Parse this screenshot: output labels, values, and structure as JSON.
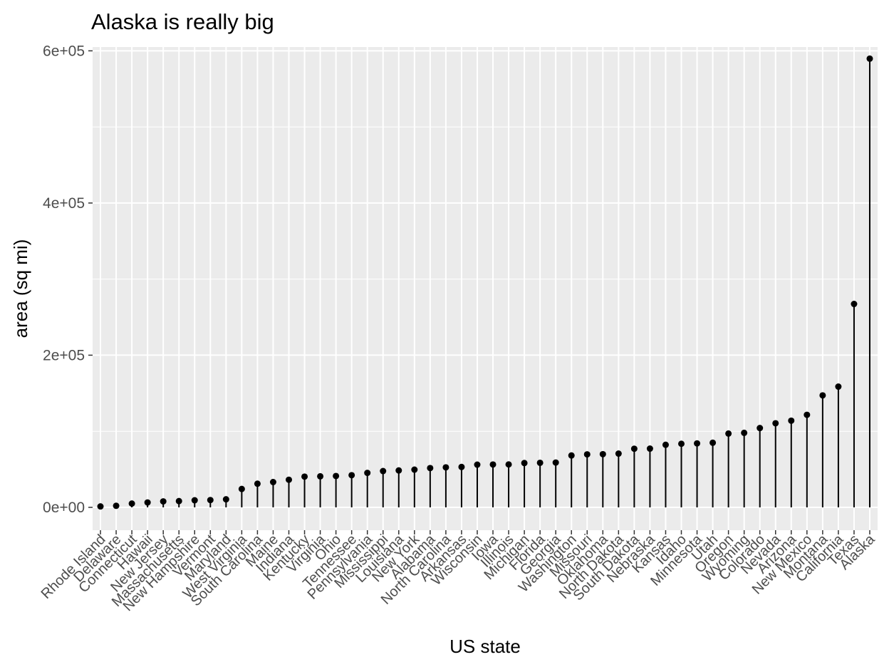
{
  "chart_data": {
    "type": "lollipop",
    "title": "Alaska is really big",
    "xlabel": "US state",
    "ylabel": "area (sq mi)",
    "ylim": [
      -30000,
      605000
    ],
    "y_ticks": [
      {
        "value": 0,
        "label": "0e+00"
      },
      {
        "value": 200000,
        "label": "2e+05"
      },
      {
        "value": 400000,
        "label": "4e+05"
      },
      {
        "value": 600000,
        "label": "6e+05"
      }
    ],
    "grid": true,
    "legend": "none",
    "colors": {
      "panel": "#ebebeb",
      "grid": "#ffffff",
      "mark": "#000000",
      "tick_text": "#4d4d4d"
    },
    "categories": [
      "Rhode Island",
      "Delaware",
      "Connecticut",
      "Hawaii",
      "New Jersey",
      "Massachusetts",
      "New Hampshire",
      "Vermont",
      "Maryland",
      "West Virginia",
      "South Carolina",
      "Maine",
      "Indiana",
      "Kentucky",
      "Virginia",
      "Ohio",
      "Tennessee",
      "Pennsylvania",
      "Mississippi",
      "Louisiana",
      "New York",
      "Alabama",
      "North Carolina",
      "Arkansas",
      "Wisconsin",
      "Iowa",
      "Illinois",
      "Michigan",
      "Florida",
      "Georgia",
      "Washington",
      "Missouri",
      "Oklahoma",
      "North Dakota",
      "South Dakota",
      "Nebraska",
      "Kansas",
      "Idaho",
      "Minnesota",
      "Utah",
      "Oregon",
      "Wyoming",
      "Colorado",
      "Nevada",
      "Arizona",
      "New Mexico",
      "Montana",
      "California",
      "Texas",
      "Alaska"
    ],
    "values": [
      1214,
      2057,
      5009,
      6450,
      7836,
      8257,
      9304,
      9609,
      10577,
      24181,
      31055,
      33215,
      36291,
      40395,
      40815,
      41222,
      42244,
      45333,
      47716,
      48523,
      49576,
      51609,
      52586,
      53104,
      56154,
      56290,
      56400,
      58216,
      58560,
      58876,
      68192,
      69686,
      69919,
      70665,
      77047,
      77227,
      82264,
      83557,
      84068,
      84916,
      96981,
      97914,
      104247,
      110540,
      113909,
      121666,
      147138,
      158693,
      267339,
      589757
    ]
  }
}
